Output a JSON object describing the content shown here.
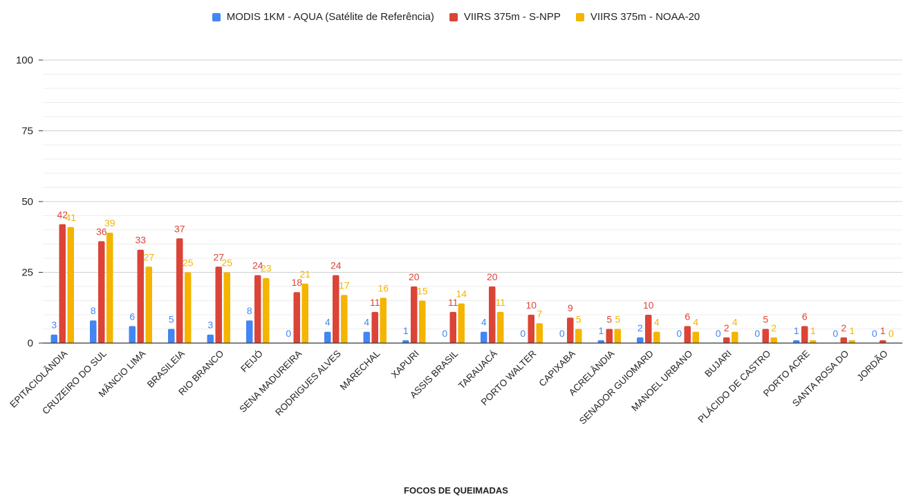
{
  "legend": [
    {
      "name": "MODIS 1KM - AQUA (Satélite de Referência)",
      "color": "#4285F4"
    },
    {
      "name": "VIIRS 375m - S-NPP",
      "color": "#DB4437"
    },
    {
      "name": "VIIRS 375m - NOAA-20",
      "color": "#F4B400"
    }
  ],
  "chart_data": {
    "type": "bar",
    "title": "",
    "xlabel": "FOCOS DE QUEIMADAS",
    "ylabel": "",
    "ylim": [
      0,
      100
    ],
    "yticks": [
      0,
      25,
      50,
      75,
      100
    ],
    "grid": true,
    "legend_position": "top",
    "categories": [
      "EPITACIOLÂNDIA",
      "CRUZEIRO DO SUL",
      "MÂNCIO LIMA",
      "BRASILEIA",
      "RIO BRANCO",
      "FEIJÓ",
      "SENA MADUREIRA",
      "RODRIGUES ALVES",
      "MARECHAL",
      "XAPURI",
      "ASSIS BRASIL",
      "TARAUACÁ",
      "PORTO WALTER",
      "CAPIXABA",
      "ACRELÂNDIA",
      "SENADOR GUIOMARD",
      "MANOEL URBANO",
      "BUJARI",
      "PLÁCIDO DE CASTRO",
      "PORTO ACRE",
      "SANTA ROSA DO",
      "JORDÃO"
    ],
    "series": [
      {
        "name": "MODIS 1KM - AQUA (Satélite de Referência)",
        "color": "#4285F4",
        "values": [
          3,
          8,
          6,
          5,
          3,
          8,
          0,
          4,
          4,
          1,
          0,
          4,
          0,
          0,
          1,
          2,
          0,
          0,
          0,
          1,
          0,
          0
        ]
      },
      {
        "name": "VIIRS 375m - S-NPP",
        "color": "#DB4437",
        "values": [
          42,
          36,
          33,
          37,
          27,
          24,
          18,
          24,
          11,
          20,
          11,
          20,
          10,
          9,
          5,
          10,
          6,
          2,
          5,
          6,
          2,
          1
        ]
      },
      {
        "name": "VIIRS 375m - NOAA-20",
        "color": "#F4B400",
        "values": [
          41,
          39,
          27,
          25,
          25,
          23,
          21,
          17,
          16,
          15,
          14,
          11,
          7,
          5,
          5,
          4,
          4,
          4,
          2,
          1,
          1,
          0
        ]
      }
    ]
  }
}
